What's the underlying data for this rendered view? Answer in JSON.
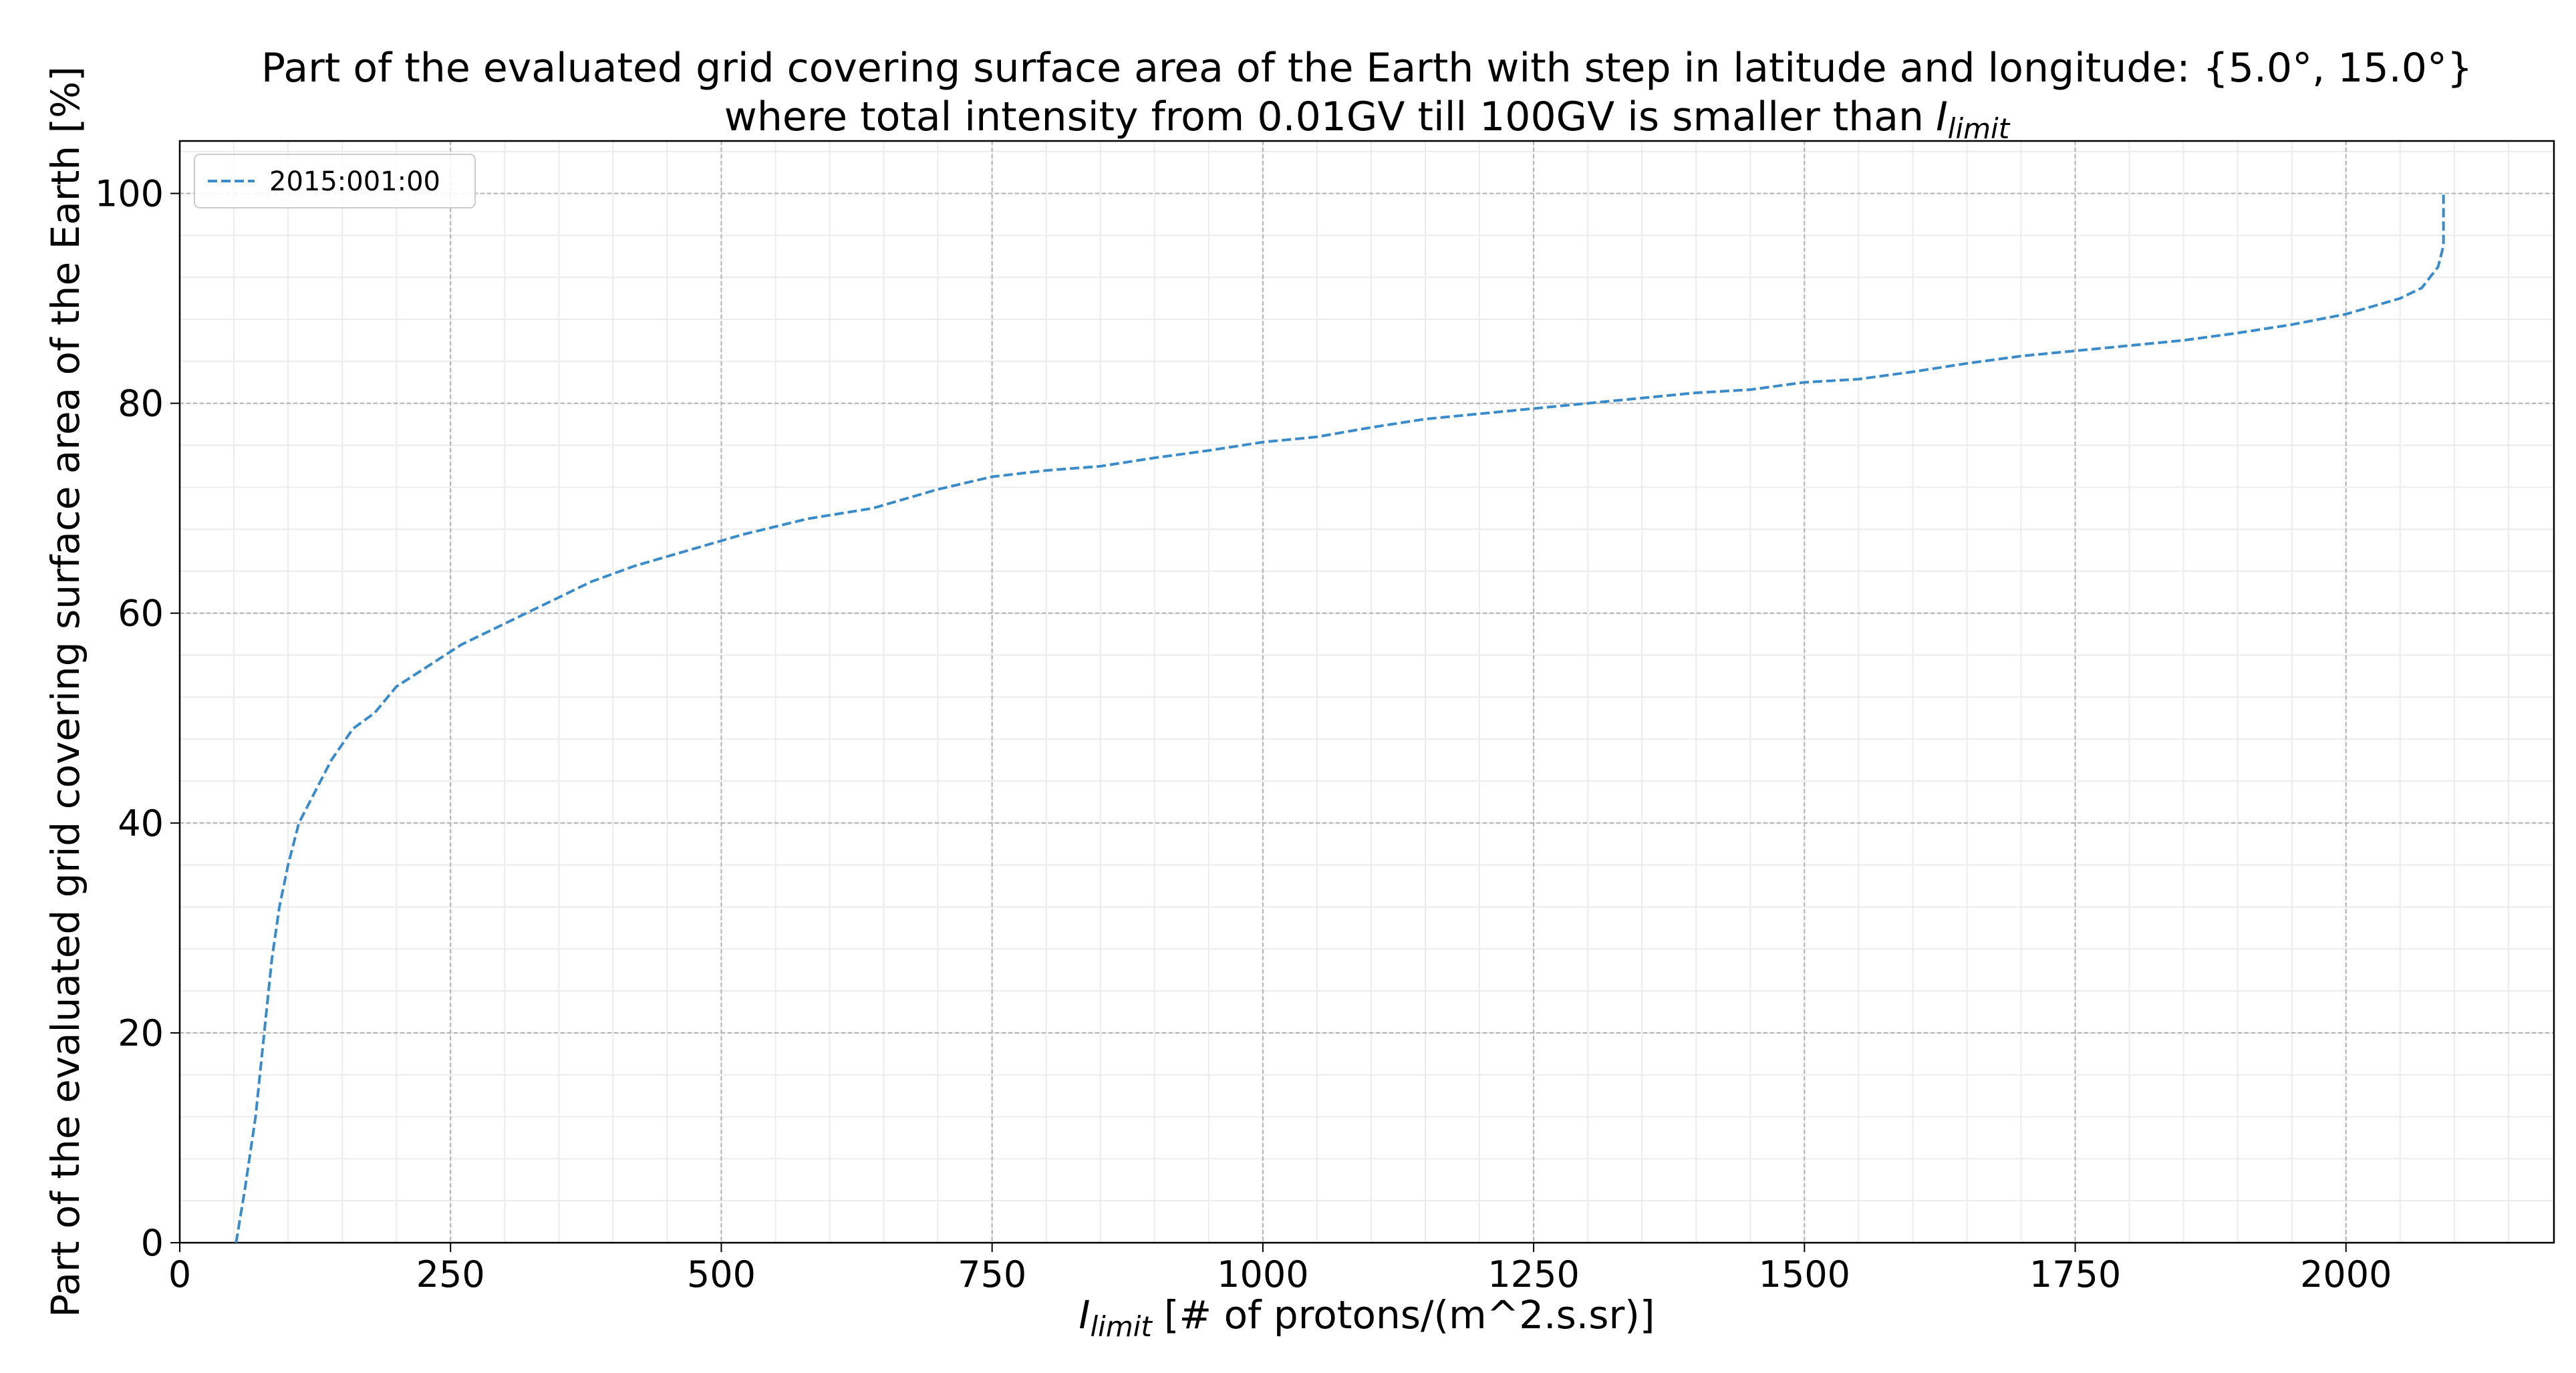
{
  "chart_data": {
    "type": "line",
    "title": [
      "Part of the evaluated grid covering surface area of the Earth with step in latitude and longitude: {5.0°, 15.0°}",
      "where total intensity from 0.01GV till 100GV is smaller than"
    ],
    "title_symbol": "I",
    "title_symbol_sub": "limit",
    "xlabel_symbol": "I",
    "xlabel_symbol_sub": "limit",
    "xlabel": "[# of protons/(m^2.s.sr)]",
    "ylabel": "Part of the evaluated grid covering surface area of the Earth  [%]",
    "x": [
      52,
      60,
      70,
      78,
      85,
      92,
      100,
      110,
      125,
      140,
      160,
      180,
      200,
      230,
      260,
      300,
      340,
      380,
      420,
      470,
      520,
      580,
      640,
      700,
      750,
      800,
      850,
      900,
      950,
      1000,
      1050,
      1100,
      1150,
      1200,
      1250,
      1300,
      1350,
      1400,
      1450,
      1500,
      1550,
      1600,
      1650,
      1700,
      1750,
      1800,
      1850,
      1900,
      1950,
      2000,
      2050,
      2070,
      2085,
      2090,
      2090
    ],
    "series": [
      {
        "name": "2015:001:00",
        "color": "#3b8bc8",
        "values": [
          0,
          5,
          12,
          20,
          27,
          32,
          36,
          40,
          43,
          46,
          49,
          50.5,
          53,
          55,
          57,
          59,
          61,
          63,
          64.5,
          66,
          67.5,
          69,
          70,
          71.8,
          73,
          73.6,
          74,
          74.8,
          75.5,
          76.3,
          76.8,
          77.7,
          78.5,
          79,
          79.5,
          80,
          80.5,
          81,
          81.3,
          82,
          82.3,
          83,
          83.8,
          84.5,
          85,
          85.5,
          86,
          86.7,
          87.5,
          88.5,
          90,
          91,
          93,
          95,
          100
        ]
      }
    ],
    "xlim": [
      0,
      2192
    ],
    "ylim": [
      0,
      105
    ],
    "xticks": [
      0,
      250,
      500,
      750,
      1000,
      1250,
      1500,
      1750,
      2000
    ],
    "yticks": [
      0,
      20,
      40,
      60,
      80,
      100
    ],
    "grid": true,
    "minor_grid": true,
    "legend": "upper left",
    "line_style": "dashed"
  }
}
